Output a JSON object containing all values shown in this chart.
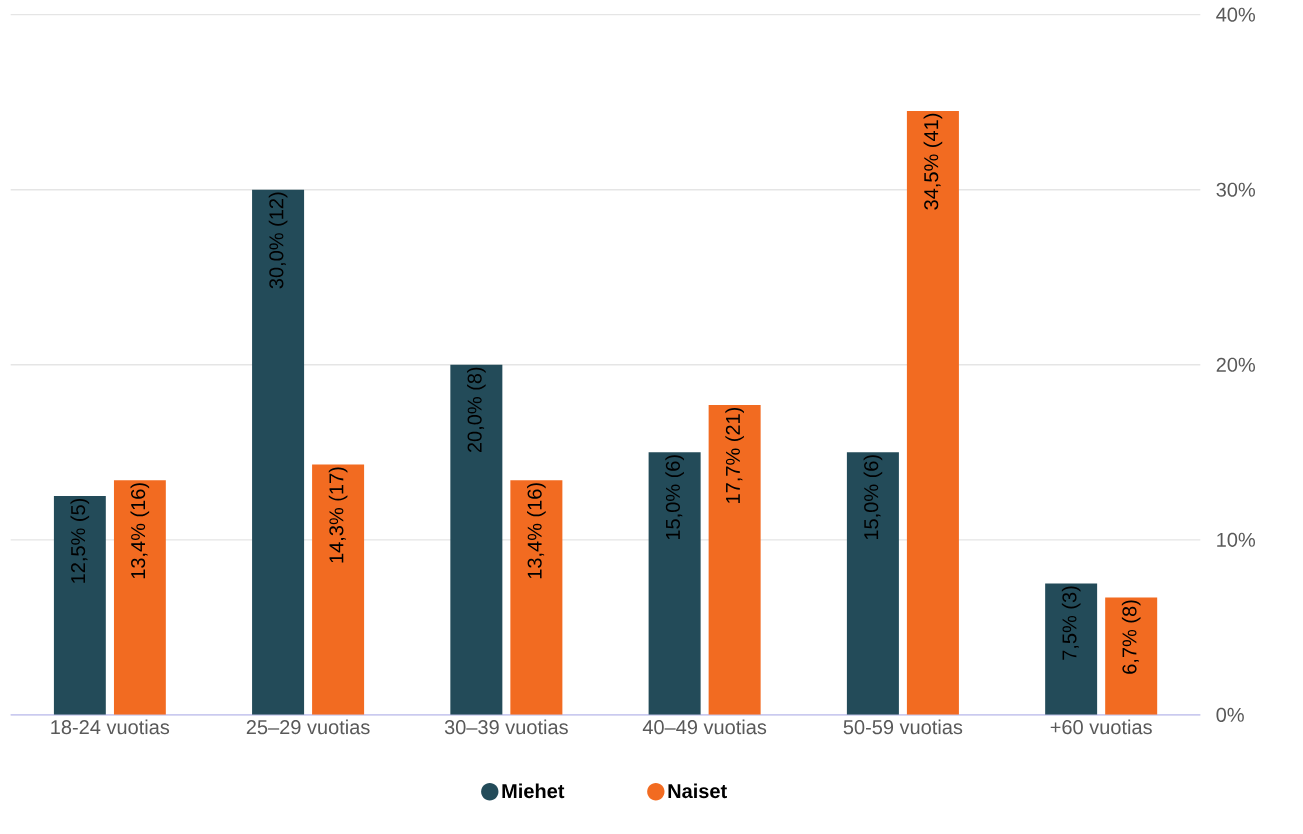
{
  "chart_data": {
    "type": "bar",
    "categories": [
      "18-24 vuotias",
      "25–29 vuotias",
      "30–39 vuotias",
      "40–49 vuotias",
      "50-59 vuotias",
      "+60 vuotias"
    ],
    "series": [
      {
        "name": "Miehet",
        "color": "#234b59",
        "values": [
          12.5,
          30.0,
          20.0,
          15.0,
          15.0,
          7.5
        ],
        "value_labels": [
          "12,5% (5)",
          "30,0% (12)",
          "20,0% (8)",
          "15,0% (6)",
          "15,0% (6)",
          "7,5% (3)"
        ]
      },
      {
        "name": "Naiset",
        "color": "#f26b21",
        "values": [
          13.4,
          14.3,
          13.4,
          17.7,
          34.5,
          6.7
        ],
        "value_labels": [
          "13,4% (16)",
          "14,3% (17)",
          "13,4% (16)",
          "17,7% (21)",
          "34,5% (41)",
          "6,7% (8)"
        ]
      }
    ],
    "ylim": [
      0,
      40
    ],
    "yticks": [
      {
        "value": 0,
        "label": "0%"
      },
      {
        "value": 10,
        "label": "10%"
      },
      {
        "value": 20,
        "label": "20%"
      },
      {
        "value": 30,
        "label": "30%"
      },
      {
        "value": 40,
        "label": "40%"
      }
    ],
    "grid": "y",
    "legend": "bottom"
  }
}
